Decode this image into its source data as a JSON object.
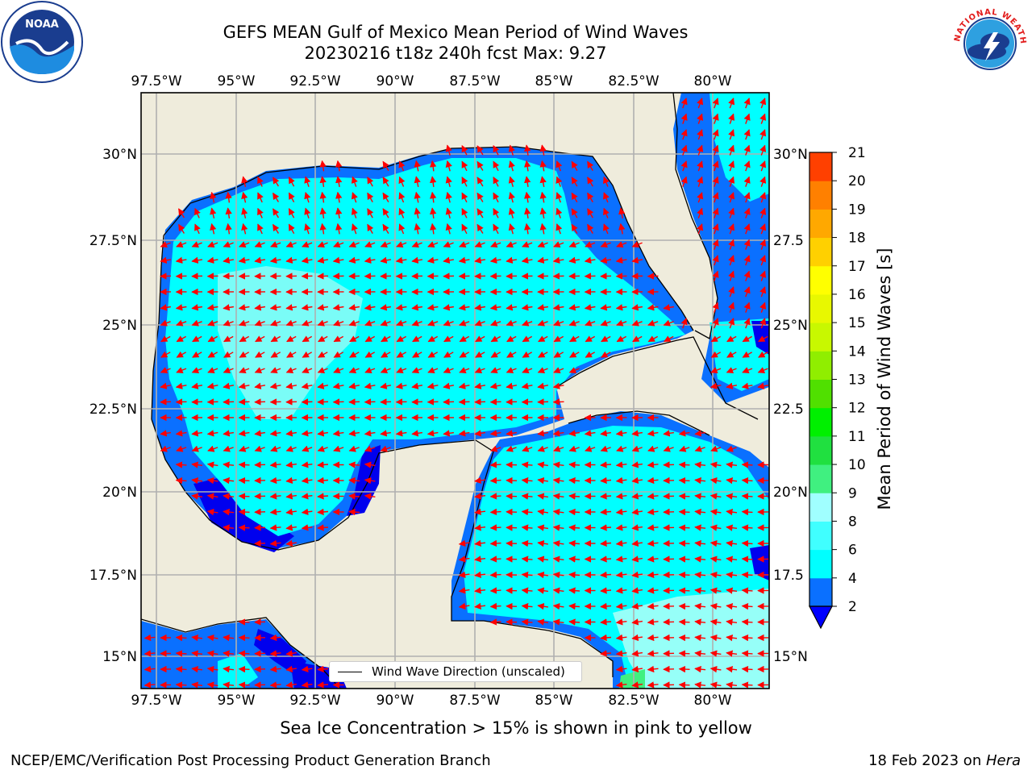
{
  "title": {
    "line1": "GEFS MEAN Gulf of Mexico Mean Period of Wind Waves",
    "line2": "20230216 t18z 240h fcst   Max: 9.27"
  },
  "axes": {
    "lon_ticks": [
      "97.5°W",
      "95°W",
      "92.5°W",
      "90°W",
      "87.5°W",
      "85°W",
      "82.5°W",
      "80°W"
    ],
    "lat_ticks_left": [
      "30°N",
      "27.5°N",
      "25°N",
      "22.5°N",
      "20°N",
      "17.5°N",
      "15°N"
    ],
    "lat_ticks_right": [
      "30°N",
      "27.5",
      "25°N",
      "22.5",
      "20°N",
      "17.5",
      "15°N"
    ]
  },
  "legend": {
    "label": "Wind Wave Direction (unscaled)"
  },
  "colorbar": {
    "label": "Mean Period of Wind Waves [s]",
    "ticks": [
      "2",
      "4",
      "6",
      "8",
      "9",
      "10",
      "11",
      "12",
      "13",
      "14",
      "15",
      "16",
      "17",
      "18",
      "19",
      "20",
      "21"
    ],
    "colors": [
      "#0a70ff",
      "#00ffff",
      "#40ffff",
      "#a0ffff",
      "#40f080",
      "#20e040",
      "#00f000",
      "#50e000",
      "#90ee00",
      "#c8f800",
      "#e8f800",
      "#ffff00",
      "#ffd000",
      "#ffa800",
      "#ff8000",
      "#ff4000",
      "#ff1000"
    ],
    "under_color": "#0000ff"
  },
  "colors": {
    "land": "#efecdc",
    "sea_deep": "#0000ee",
    "sea_low": "#0a70ff",
    "sea_mid": "#00ffff",
    "sea_high": "#8ffcf6",
    "arrow": "#ff0000",
    "grid": "#b0b0b0"
  },
  "footer": {
    "ice_note": "Sea Ice Concentration > 15% is shown in pink to yellow",
    "credit": "NCEP/EMC/Verification Post Processing Product Generation Branch",
    "date": "18 Feb 2023 on ",
    "host": "Hera"
  },
  "logos": {
    "left": "NOAA",
    "right": "NATIONAL WEATHER SERVICE"
  }
}
